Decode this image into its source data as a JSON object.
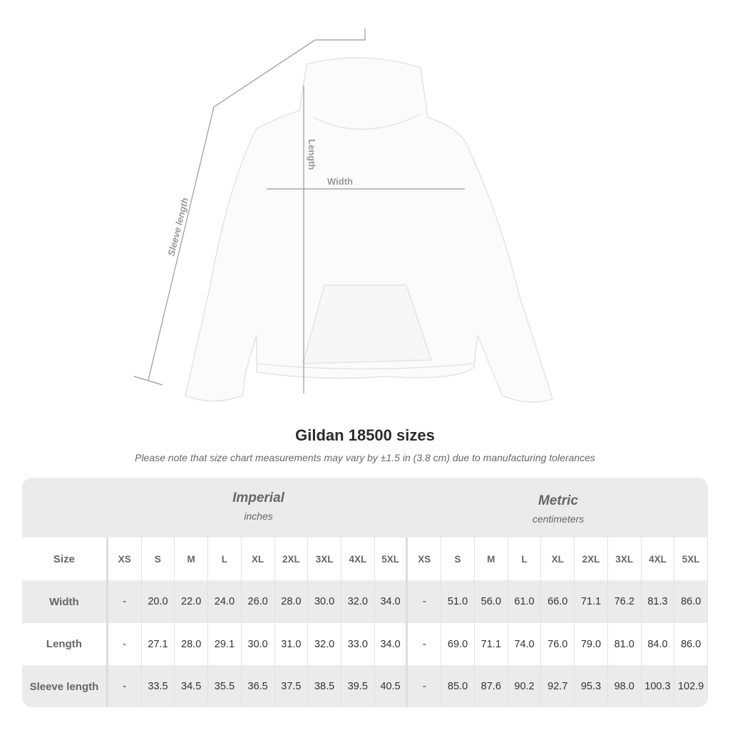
{
  "illustration": {
    "labels": {
      "length": "Length",
      "width": "Width",
      "sleeve": "Sleeve length"
    }
  },
  "title": "Gildan 18500 sizes",
  "note": "Please note that size chart measurements may vary by ±1.5 in (3.8 cm) due to manufacturing tolerances",
  "imperial": {
    "name": "Imperial",
    "unit": "inches"
  },
  "metric": {
    "name": "Metric",
    "unit": "centimeters"
  },
  "size_label": "Size",
  "sizes": [
    "XS",
    "S",
    "M",
    "L",
    "XL",
    "2XL",
    "3XL",
    "4XL",
    "5XL"
  ],
  "rows": [
    {
      "label": "Width",
      "imperial": [
        "-",
        "20.0",
        "22.0",
        "24.0",
        "26.0",
        "28.0",
        "30.0",
        "32.0",
        "34.0"
      ],
      "metric": [
        "-",
        "51.0",
        "56.0",
        "61.0",
        "66.0",
        "71.1",
        "76.2",
        "81.3",
        "86.0"
      ]
    },
    {
      "label": "Length",
      "imperial": [
        "-",
        "27.1",
        "28.0",
        "29.1",
        "30.0",
        "31.0",
        "32.0",
        "33.0",
        "34.0"
      ],
      "metric": [
        "-",
        "69.0",
        "71.1",
        "74.0",
        "76.0",
        "79.0",
        "81.0",
        "84.0",
        "86.0"
      ]
    },
    {
      "label": "Sleeve length",
      "imperial": [
        "-",
        "33.5",
        "34.5",
        "35.5",
        "36.5",
        "37.5",
        "38.5",
        "39.5",
        "40.5"
      ],
      "metric": [
        "-",
        "85.0",
        "87.6",
        "90.2",
        "92.7",
        "95.3",
        "98.0",
        "100.3",
        "102.9"
      ]
    }
  ]
}
